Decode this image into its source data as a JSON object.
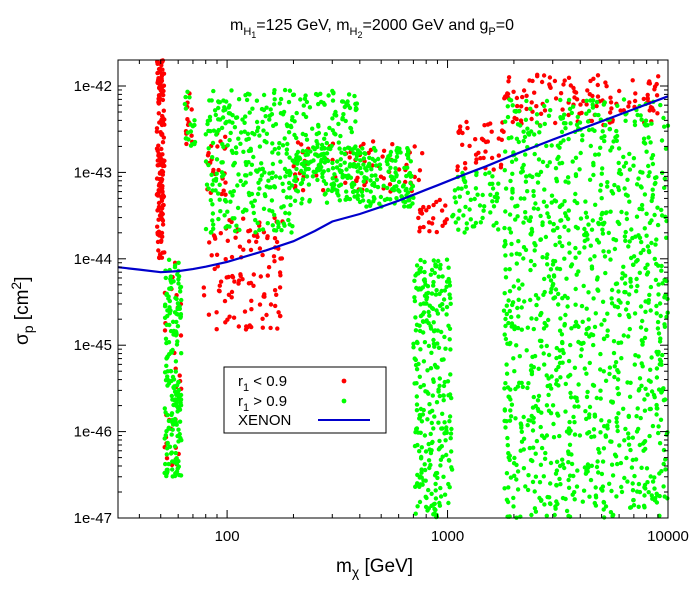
{
  "chart_data": {
    "type": "scatter",
    "title": {
      "m1": "m",
      "m1_sub": "H",
      "m1_subsub": "1",
      "m1_val": "=125 GeV,  ",
      "m2": "m",
      "m2_sub": "H",
      "m2_subsub": "2",
      "m2_val": "=2000 GeV and g",
      "g_sub": "P",
      "g_val": "=0"
    },
    "xlabel": {
      "main": "m",
      "sub": "χ",
      "rest": " [GeV]"
    },
    "ylabel": {
      "main": "σ",
      "sub": "p",
      "rest": " [cm",
      "sup": "2",
      "end": "]"
    },
    "x_scale": "log",
    "y_scale": "log",
    "xlim": [
      32,
      10000
    ],
    "ylim": [
      1e-47,
      2e-42
    ],
    "x_ticks": [
      {
        "value": 100,
        "label": "100"
      },
      {
        "value": 1000,
        "label": "1000"
      },
      {
        "value": 10000,
        "label": "10000"
      }
    ],
    "y_ticks": [
      {
        "value": 1e-42,
        "label": "1e-42"
      },
      {
        "value": 1e-43,
        "label": "1e-43"
      },
      {
        "value": 1e-44,
        "label": "1e-44"
      },
      {
        "value": 1e-45,
        "label": "1e-45"
      },
      {
        "value": 1e-46,
        "label": "1e-46"
      },
      {
        "value": 1e-47,
        "label": "1e-47"
      }
    ],
    "legend": {
      "placement": "bottom-left",
      "entries": [
        {
          "text": "r",
          "sub": "1",
          "rest": " < 0.9",
          "color": "#ff0000",
          "kind": "points"
        },
        {
          "text": "r",
          "sub": "1",
          "rest": " > 0.9",
          "color": "#00ff00",
          "kind": "points"
        },
        {
          "text": "XENON",
          "sub": "",
          "rest": "",
          "color": "#0000cc",
          "kind": "line"
        }
      ]
    },
    "series": [
      {
        "name": "XENON",
        "type": "line",
        "color": "#0000cc",
        "x": [
          32,
          40,
          50,
          60,
          70,
          80,
          100,
          150,
          200,
          250,
          300,
          400,
          500,
          600,
          700,
          800,
          900,
          1000,
          1200,
          1500,
          2000,
          3000,
          5000,
          7000,
          10000
        ],
        "y": [
          8e-45,
          7.5e-45,
          7e-45,
          7.2e-45,
          7.6e-45,
          8.1e-45,
          9.2e-45,
          1.25e-44,
          1.6e-44,
          2.1e-44,
          2.7e-44,
          3.3e-44,
          4e-44,
          4.7e-44,
          5.5e-44,
          6.3e-44,
          7.1e-44,
          7.9e-44,
          9.5e-44,
          1.18e-43,
          1.6e-43,
          2.4e-43,
          3.9e-43,
          5.4e-43,
          7.6e-43
        ]
      },
      {
        "name": "r1 < 0.9",
        "type": "scatter",
        "color": "#ff0000",
        "regions": [
          {
            "x": [
              48,
              52
            ],
            "y": [
              1e-44,
              2e-42
            ],
            "n": 160
          },
          {
            "x": [
              52,
              62
            ],
            "y": [
              3e-47,
              1e-44
            ],
            "n": 30
          },
          {
            "x": [
              65,
              70
            ],
            "y": [
              2e-43,
              9e-43
            ],
            "n": 12
          },
          {
            "x": [
              78,
              180
            ],
            "y": [
              1.5e-45,
              3e-44
            ],
            "n": 110
          },
          {
            "x": [
              80,
              100
            ],
            "y": [
              5e-44,
              3e-43
            ],
            "n": 25
          },
          {
            "x": [
              200,
              800
            ],
            "y": [
              6e-44,
              2.5e-43
            ],
            "n": 70
          },
          {
            "x": [
              700,
              1000
            ],
            "y": [
              2e-44,
              5e-44
            ],
            "n": 25
          },
          {
            "x": [
              1100,
              1800
            ],
            "y": [
              1e-43,
              4e-43
            ],
            "n": 40
          },
          {
            "x": [
              1800,
              9500
            ],
            "y": [
              3.5e-43,
              1.4e-42
            ],
            "n": 120
          }
        ]
      },
      {
        "name": "r1 > 0.9",
        "type": "scatter",
        "color": "#00ff00",
        "regions": [
          {
            "x": [
              52,
              62
            ],
            "y": [
              3e-47,
              1e-44
            ],
            "n": 180
          },
          {
            "x": [
              64,
              72
            ],
            "y": [
              2e-43,
              9e-43
            ],
            "n": 18
          },
          {
            "x": [
              80,
              400
            ],
            "y": [
              1e-43,
              9e-43
            ],
            "n": 260
          },
          {
            "x": [
              80,
              200
            ],
            "y": [
              2e-44,
              1e-43
            ],
            "n": 120
          },
          {
            "x": [
              200,
              700
            ],
            "y": [
              4e-44,
              2e-43
            ],
            "n": 260
          },
          {
            "x": [
              700,
              1050
            ],
            "y": [
              1e-47,
              1e-44
            ],
            "n": 280
          },
          {
            "x": [
              1050,
              1700
            ],
            "y": [
              2e-44,
              1e-43
            ],
            "n": 60
          },
          {
            "x": [
              1800,
              10000
            ],
            "y": [
              1e-47,
              7e-43
            ],
            "n": 1100
          }
        ]
      }
    ]
  }
}
